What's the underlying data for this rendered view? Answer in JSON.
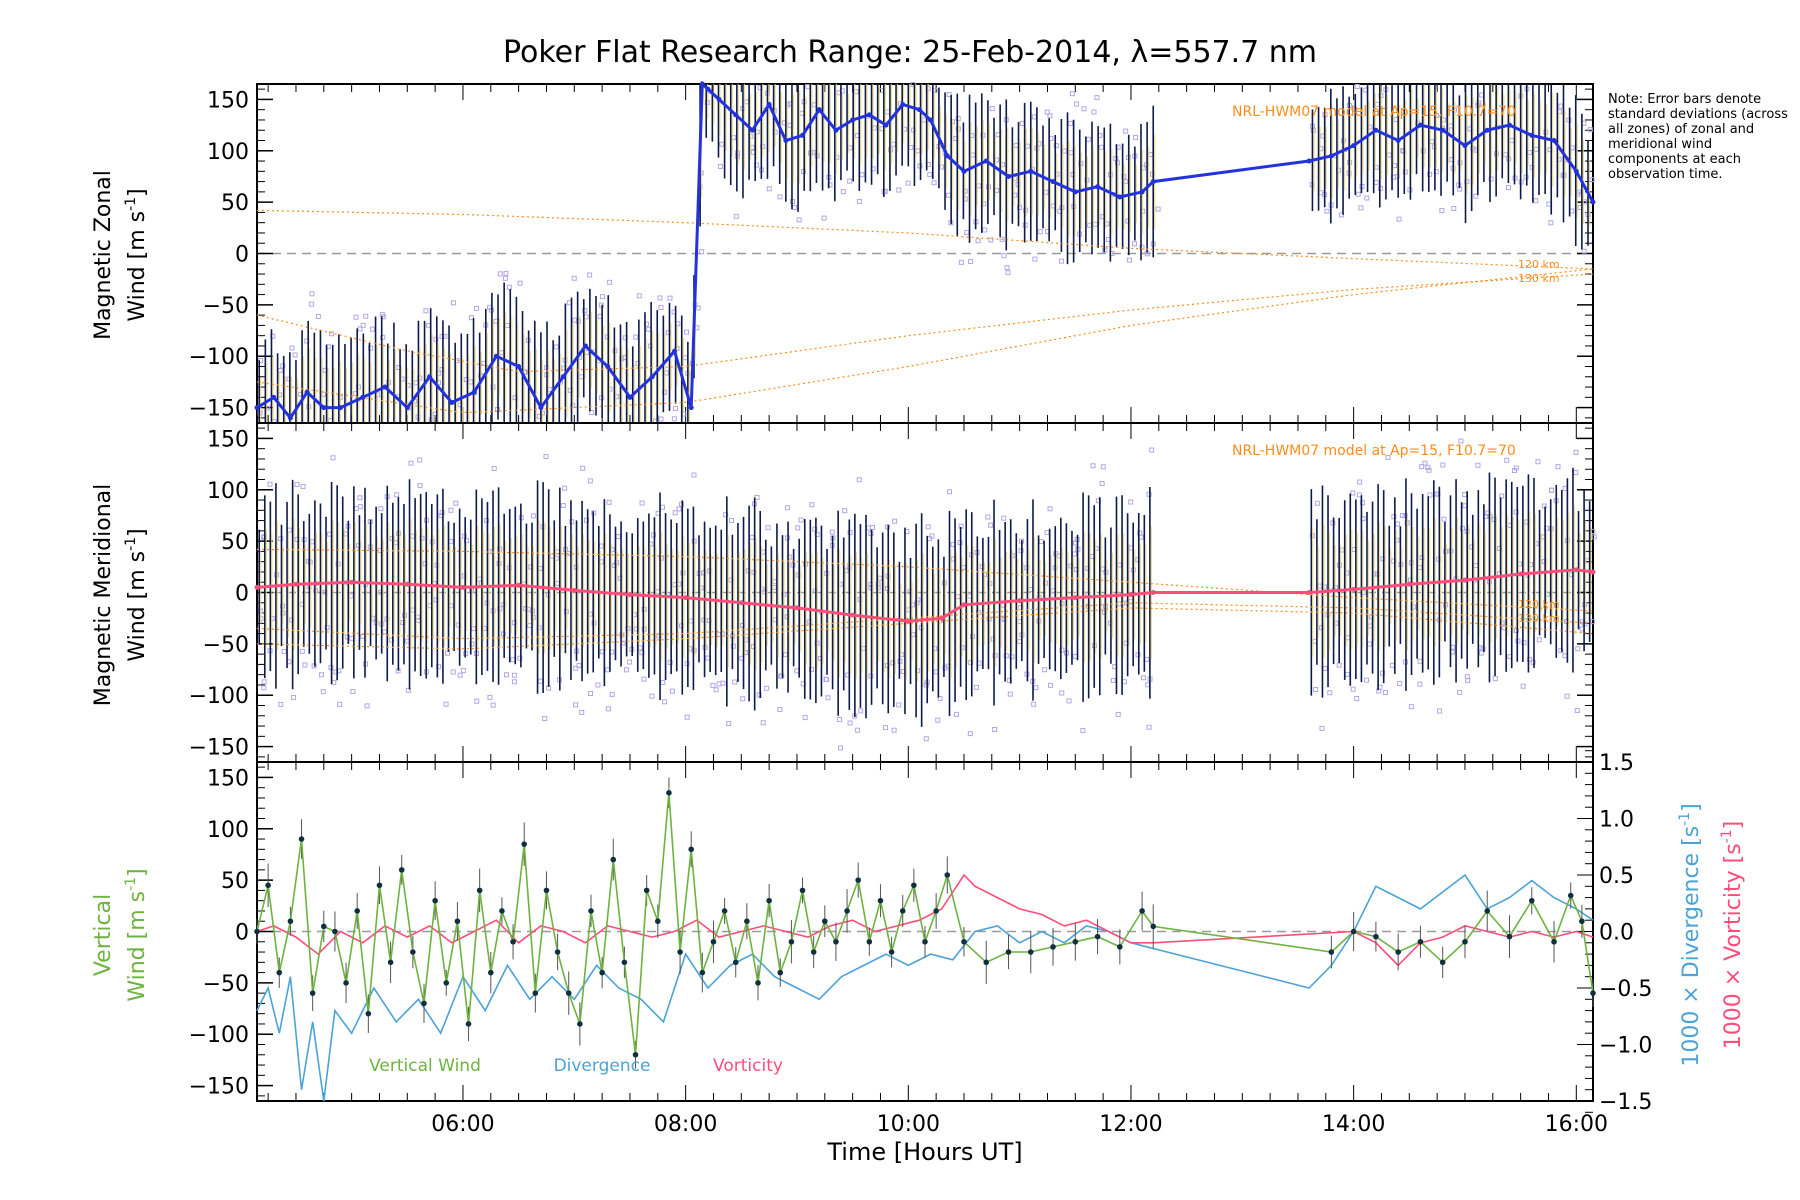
{
  "title": "Poker Flat Research Range: 25-Feb-2014, λ=557.7 nm",
  "note": "Note: Error bars denote standard deviations (across all zones) of zonal and meridional wind components at each observation time.",
  "x_axis": {
    "label": "Time [Hours UT]",
    "range_hours": [
      4.15,
      16.15
    ],
    "ticks": [
      {
        "v": 6,
        "label": "06:00"
      },
      {
        "v": 8,
        "label": "08:00"
      },
      {
        "v": 10,
        "label": "10:00"
      },
      {
        "v": 12,
        "label": "12:00"
      },
      {
        "v": 14,
        "label": "14:00"
      },
      {
        "v": 16,
        "label": "16:00"
      }
    ]
  },
  "colors": {
    "zonal": "#2233dd",
    "meridional": "#ff4d7a",
    "vertical": "#6db33f",
    "divergence": "#4ba3d6",
    "vorticity": "#ff4d7a",
    "model": "#ff8c1a",
    "points": "#b3a6e6"
  },
  "chart_data": [
    {
      "type": "line",
      "panel": "zonal",
      "ylabel_1": "Magnetic Zonal",
      "ylabel_2": "Wind [m s",
      "ylabel_sup": "-1",
      "ylim": [
        -165,
        165
      ],
      "yticks": [
        -150,
        -100,
        -50,
        0,
        50,
        100,
        150
      ],
      "model_label": "NRL-HWM07 model at Ap=15, F10.7=70",
      "model_alt_labels": [
        "120 km",
        "130 km"
      ],
      "series": [
        {
          "name": "zonal",
          "x": [
            4.15,
            4.3,
            4.45,
            4.6,
            4.75,
            4.9,
            5.1,
            5.3,
            5.5,
            5.7,
            5.9,
            6.1,
            6.3,
            6.5,
            6.7,
            6.9,
            7.1,
            7.3,
            7.5,
            7.7,
            7.9,
            8.05,
            8.15,
            8.2,
            8.3,
            8.45,
            8.6,
            8.75,
            8.9,
            9.05,
            9.2,
            9.35,
            9.5,
            9.65,
            9.8,
            9.95,
            10.1,
            10.2,
            10.35,
            10.5,
            10.7,
            10.9,
            11.1,
            11.3,
            11.5,
            11.7,
            11.9,
            12.1,
            12.2,
            13.6,
            13.8,
            14.0,
            14.2,
            14.4,
            14.6,
            14.8,
            15.0,
            15.2,
            15.4,
            15.6,
            15.8,
            16.0,
            16.15
          ],
          "y": [
            -150,
            -140,
            -160,
            -135,
            -150,
            -150,
            -140,
            -130,
            -150,
            -120,
            -145,
            -135,
            -100,
            -110,
            -150,
            -120,
            -90,
            -110,
            -140,
            -120,
            -95,
            -150,
            165,
            160,
            150,
            135,
            120,
            145,
            110,
            115,
            140,
            120,
            130,
            135,
            125,
            145,
            140,
            130,
            95,
            80,
            90,
            75,
            80,
            70,
            60,
            65,
            55,
            60,
            70,
            90,
            95,
            105,
            120,
            110,
            125,
            120,
            105,
            120,
            125,
            115,
            110,
            80,
            50
          ]
        }
      ],
      "models": [
        {
          "x": [
            4.15,
            6,
            8,
            10,
            12,
            14,
            16.15
          ],
          "y": [
            42,
            38,
            30,
            20,
            5,
            -5,
            -15
          ]
        },
        {
          "x": [
            4.15,
            5.5,
            6.5,
            8,
            10,
            12,
            14,
            16.15
          ],
          "y": [
            -60,
            -95,
            -115,
            -110,
            -80,
            -55,
            -35,
            -20
          ]
        },
        {
          "x": [
            4.15,
            6,
            8,
            10,
            12,
            14,
            16.15
          ],
          "y": [
            -125,
            -155,
            -145,
            -110,
            -70,
            -40,
            -15
          ]
        }
      ]
    },
    {
      "type": "line",
      "panel": "meridional",
      "ylabel_1": "Magnetic Meridional",
      "ylabel_2": "Wind [m s",
      "ylabel_sup": "-1",
      "ylim": [
        -165,
        165
      ],
      "yticks": [
        -150,
        -100,
        -50,
        0,
        50,
        100,
        150
      ],
      "model_label": "NRL-HWM07 model at Ap=15, F10.7=70",
      "model_alt_labels": [
        "120 km",
        "130 km"
      ],
      "series": [
        {
          "name": "meridional",
          "x": [
            4.15,
            4.5,
            5.0,
            5.5,
            6.0,
            6.5,
            7.0,
            7.5,
            8.0,
            8.5,
            9.0,
            9.5,
            10.0,
            10.3,
            10.5,
            11.0,
            11.5,
            12.0,
            12.2,
            13.6,
            14.0,
            14.5,
            15.0,
            15.5,
            16.0,
            16.15
          ],
          "y": [
            5,
            8,
            10,
            8,
            5,
            7,
            2,
            -2,
            -5,
            -10,
            -15,
            -22,
            -28,
            -25,
            -12,
            -8,
            -5,
            -2,
            0,
            0,
            3,
            8,
            12,
            18,
            22,
            20
          ]
        }
      ],
      "models": [
        {
          "x": [
            4.15,
            6,
            8,
            10,
            12,
            14,
            16.15
          ],
          "y": [
            42,
            40,
            35,
            25,
            10,
            -5,
            -18
          ]
        },
        {
          "x": [
            4.15,
            6,
            8,
            10,
            12,
            14,
            16.15
          ],
          "y": [
            -35,
            -45,
            -40,
            -25,
            -10,
            -15,
            -30
          ]
        },
        {
          "x": [
            4.15,
            6,
            8,
            10,
            12,
            14,
            16.15
          ],
          "y": [
            -50,
            -55,
            -45,
            -30,
            -15,
            -20,
            -40
          ]
        }
      ]
    },
    {
      "type": "line",
      "panel": "vertical",
      "ylabel_1": "Vertical",
      "ylabel_2": "Wind [m s",
      "ylabel_sup": "-1",
      "ylim": [
        -165,
        165
      ],
      "yticks": [
        -150,
        -100,
        -50,
        0,
        50,
        100,
        150
      ],
      "y2lim": [
        -1.5,
        1.5
      ],
      "y2ticks": [
        "-1.5",
        "-1.0",
        "-0.5",
        "0.0",
        "0.5",
        "1.0",
        "1.5"
      ],
      "y2label_div": "1000 × Divergence [s",
      "y2label_vor": "1000 × Vorticity [s",
      "y2label_sup": "-1",
      "legend": [
        "Vertical Wind",
        "Divergence",
        "Vorticity"
      ],
      "series": [
        {
          "name": "vertical",
          "x": [
            4.15,
            4.25,
            4.35,
            4.45,
            4.55,
            4.65,
            4.75,
            4.85,
            4.95,
            5.05,
            5.15,
            5.25,
            5.35,
            5.45,
            5.55,
            5.65,
            5.75,
            5.85,
            5.95,
            6.05,
            6.15,
            6.25,
            6.35,
            6.45,
            6.55,
            6.65,
            6.75,
            6.85,
            6.95,
            7.05,
            7.15,
            7.25,
            7.35,
            7.45,
            7.55,
            7.65,
            7.75,
            7.85,
            7.95,
            8.05,
            8.15,
            8.25,
            8.35,
            8.45,
            8.55,
            8.65,
            8.75,
            8.85,
            8.95,
            9.05,
            9.15,
            9.25,
            9.35,
            9.45,
            9.55,
            9.65,
            9.75,
            9.85,
            9.95,
            10.05,
            10.15,
            10.25,
            10.35,
            10.5,
            10.7,
            10.9,
            11.1,
            11.3,
            11.5,
            11.7,
            11.9,
            12.1,
            12.2,
            13.8,
            14.0,
            14.2,
            14.4,
            14.6,
            14.8,
            15.0,
            15.2,
            15.4,
            15.6,
            15.8,
            15.95,
            16.05,
            16.15
          ],
          "y": [
            0,
            45,
            -40,
            10,
            90,
            -60,
            5,
            0,
            -50,
            20,
            -80,
            45,
            -30,
            60,
            -20,
            -70,
            30,
            -50,
            10,
            -90,
            40,
            -40,
            20,
            -10,
            85,
            -60,
            40,
            -20,
            -60,
            -90,
            20,
            -40,
            70,
            -30,
            -120,
            40,
            10,
            135,
            -20,
            80,
            -40,
            -10,
            20,
            -30,
            10,
            -50,
            30,
            -40,
            -10,
            40,
            -20,
            10,
            -10,
            20,
            50,
            -10,
            30,
            -20,
            20,
            45,
            -10,
            20,
            55,
            -10,
            -30,
            -20,
            -20,
            -15,
            -10,
            -5,
            -15,
            20,
            5,
            -20,
            0,
            -5,
            -20,
            -10,
            -30,
            -10,
            20,
            -5,
            30,
            -10,
            35,
            10,
            -60
          ]
        },
        {
          "name": "divergence",
          "x": [
            4.15,
            4.25,
            4.35,
            4.45,
            4.55,
            4.65,
            4.75,
            4.85,
            5.0,
            5.2,
            5.4,
            5.6,
            5.8,
            6.0,
            6.2,
            6.4,
            6.6,
            6.8,
            7.0,
            7.2,
            7.4,
            7.6,
            7.8,
            8.0,
            8.2,
            8.4,
            8.6,
            8.8,
            9.0,
            9.2,
            9.4,
            9.6,
            9.8,
            10.0,
            10.2,
            10.4,
            10.6,
            10.8,
            11.0,
            11.2,
            11.4,
            11.6,
            11.8,
            12.0,
            12.2,
            13.6,
            13.8,
            14.0,
            14.2,
            14.4,
            14.6,
            14.8,
            15.0,
            15.2,
            15.4,
            15.6,
            15.8,
            16.0,
            16.15
          ],
          "y": [
            -0.7,
            -0.5,
            -0.9,
            -0.4,
            -1.4,
            -0.8,
            -1.5,
            -0.7,
            -0.9,
            -0.5,
            -0.8,
            -0.6,
            -0.9,
            -0.4,
            -0.7,
            -0.3,
            -0.6,
            -0.4,
            -0.6,
            -0.3,
            -0.5,
            -0.6,
            -0.8,
            -0.2,
            -0.5,
            -0.3,
            -0.2,
            -0.4,
            -0.5,
            -0.6,
            -0.4,
            -0.3,
            -0.2,
            -0.3,
            -0.2,
            -0.25,
            0.0,
            0.05,
            -0.1,
            0.0,
            -0.1,
            0.05,
            0.0,
            -0.1,
            -0.15,
            -0.5,
            -0.3,
            0.0,
            0.4,
            0.3,
            0.2,
            0.35,
            0.5,
            0.2,
            0.3,
            0.45,
            0.3,
            0.2,
            0.1
          ]
        },
        {
          "name": "vorticity",
          "x": [
            4.15,
            4.3,
            4.5,
            4.7,
            4.9,
            5.1,
            5.3,
            5.5,
            5.7,
            5.9,
            6.1,
            6.3,
            6.5,
            6.7,
            6.9,
            7.1,
            7.3,
            7.5,
            7.7,
            7.9,
            8.1,
            8.3,
            8.5,
            8.7,
            8.9,
            9.1,
            9.3,
            9.5,
            9.7,
            9.9,
            10.1,
            10.3,
            10.5,
            10.6,
            10.8,
            11.0,
            11.2,
            11.4,
            11.6,
            11.8,
            12.0,
            12.2,
            14.0,
            14.2,
            14.4,
            14.6,
            14.8,
            15.0,
            15.2,
            15.4,
            15.6,
            15.8,
            16.0,
            16.15
          ],
          "y": [
            0.0,
            0.05,
            -0.05,
            -0.2,
            0.0,
            -0.1,
            0.05,
            -0.05,
            0.05,
            -0.1,
            0.0,
            0.1,
            -0.1,
            0.05,
            0.0,
            -0.1,
            0.05,
            0.0,
            -0.05,
            0.0,
            0.1,
            -0.05,
            0.0,
            0.05,
            0.0,
            -0.05,
            0.05,
            0.1,
            0.0,
            0.05,
            0.1,
            0.2,
            0.5,
            0.4,
            0.3,
            0.2,
            0.15,
            0.05,
            0.1,
            0.0,
            -0.1,
            -0.1,
            0.0,
            -0.1,
            -0.3,
            -0.1,
            -0.05,
            0.05,
            0.0,
            -0.05,
            0.0,
            -0.05,
            0.0,
            -0.05
          ]
        }
      ]
    }
  ]
}
